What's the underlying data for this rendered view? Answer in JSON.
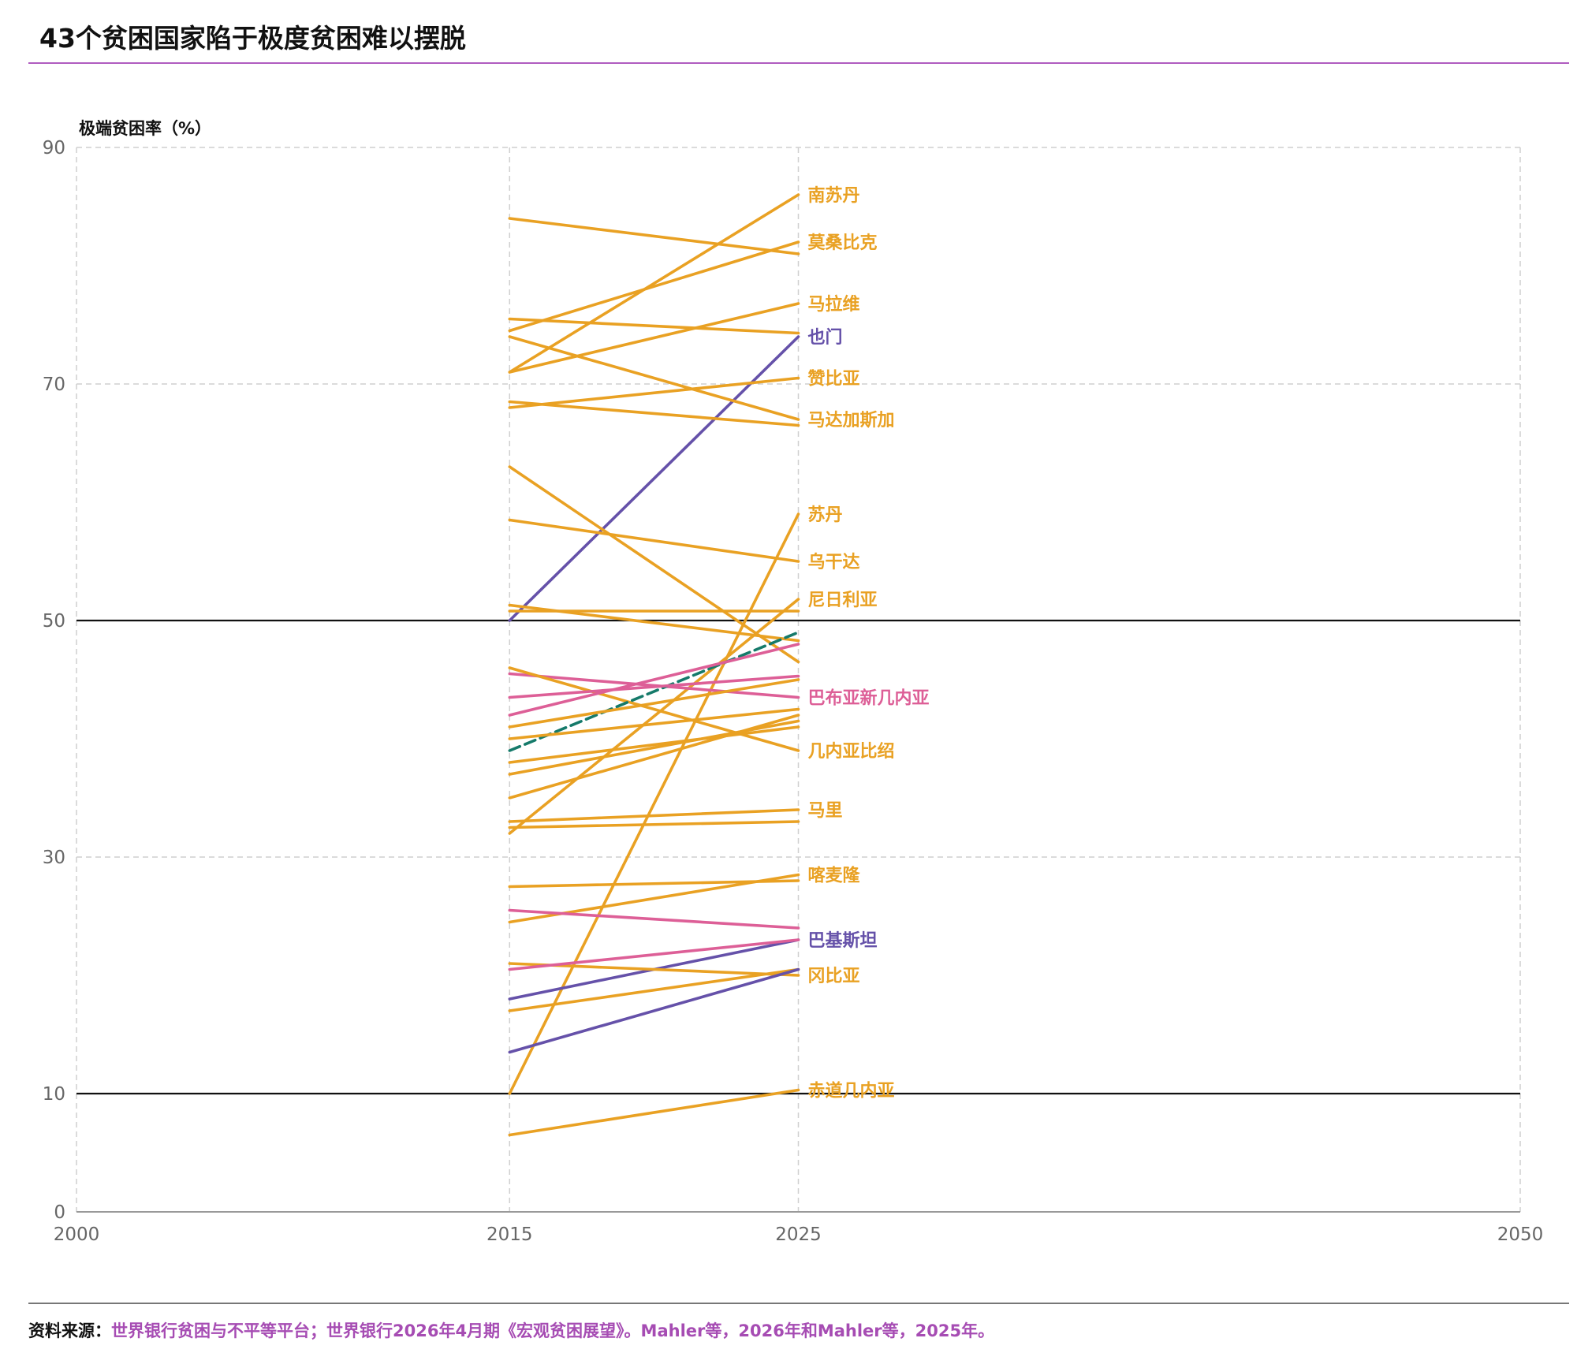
{
  "title": "43个贫困国家陷于极度贫困难以摆脱",
  "source_label": "资料来源：",
  "source_text": "世界银行贫困与不平等平台；世界银行2026年4月期《宏观贫困展望》。Mahler等，2026年和Mahler等，2025年。",
  "colors": {
    "orange": "#e9a123",
    "purple": "#6551a9",
    "pink": "#dd5f97",
    "teal": "#157a6a",
    "grid": "#cfcfcf",
    "axis": "#999999",
    "threshold": "#111111"
  },
  "chart_data": {
    "type": "line",
    "ylabel": "极端贫困率（%）",
    "xlim": [
      2000,
      2050
    ],
    "ylim": [
      0,
      90
    ],
    "x_ticks": [
      2000,
      2015,
      2025,
      2050
    ],
    "y_ticks": [
      0,
      10,
      30,
      50,
      70,
      90
    ],
    "grid": true,
    "threshold_lines": [
      10,
      50
    ],
    "series": [
      {
        "name": "南苏丹",
        "color": "orange",
        "x": [
          2015,
          2025
        ],
        "y": [
          71.0,
          86.0
        ]
      },
      {
        "name": "莫桑比克",
        "color": "orange",
        "x": [
          2015,
          2025
        ],
        "y": [
          74.5,
          82.0
        ]
      },
      {
        "name": "马拉维",
        "color": "orange",
        "x": [
          2015,
          2025
        ],
        "y": [
          71.0,
          76.8
        ]
      },
      {
        "name": "也门",
        "color": "purple",
        "x": [
          2015,
          2025
        ],
        "y": [
          50.0,
          74.0
        ]
      },
      {
        "name": "赞比亚",
        "color": "orange",
        "x": [
          2015,
          2025
        ],
        "y": [
          68.0,
          70.5
        ]
      },
      {
        "name": "马达加斯加",
        "color": "orange",
        "x": [
          2015,
          2025
        ],
        "y": [
          74.0,
          67.0
        ]
      },
      {
        "name": "苏丹",
        "color": "orange",
        "x": [
          2015,
          2025
        ],
        "y": [
          10.0,
          59.0
        ]
      },
      {
        "name": "乌干达",
        "color": "orange",
        "x": [
          2015,
          2025
        ],
        "y": [
          58.5,
          55.0
        ]
      },
      {
        "name": "尼日利亚",
        "color": "orange",
        "x": [
          2015,
          2025
        ],
        "y": [
          32.0,
          51.8
        ]
      },
      {
        "name": "巴布亚新几内亚",
        "color": "pink",
        "x": [
          2015,
          2025
        ],
        "y": [
          45.5,
          43.5
        ]
      },
      {
        "name": "几内亚比绍",
        "color": "orange",
        "x": [
          2015,
          2025
        ],
        "y": [
          46.0,
          39.0
        ]
      },
      {
        "name": "马里",
        "color": "orange",
        "x": [
          2015,
          2025
        ],
        "y": [
          33.0,
          34.0
        ]
      },
      {
        "name": "喀麦隆",
        "color": "orange",
        "x": [
          2015,
          2025
        ],
        "y": [
          24.5,
          28.5
        ]
      },
      {
        "name": "巴基斯坦",
        "color": "purple",
        "x": [
          2015,
          2025
        ],
        "y": [
          18.0,
          23.0
        ]
      },
      {
        "name": "冈比亚",
        "color": "orange",
        "x": [
          2015,
          2025
        ],
        "y": [
          21.0,
          20.0
        ]
      },
      {
        "name": "赤道几内亚",
        "color": "orange",
        "x": [
          2015,
          2025
        ],
        "y": [
          6.5,
          10.3
        ]
      },
      {
        "color": "orange",
        "x": [
          2015,
          2025
        ],
        "y": [
          84.0,
          81.0
        ]
      },
      {
        "color": "orange",
        "x": [
          2015,
          2025
        ],
        "y": [
          75.5,
          74.3
        ]
      },
      {
        "color": "orange",
        "x": [
          2015,
          2025
        ],
        "y": [
          68.5,
          66.5
        ]
      },
      {
        "color": "orange",
        "x": [
          2015,
          2025
        ],
        "y": [
          63.0,
          46.5
        ]
      },
      {
        "color": "orange",
        "x": [
          2015,
          2025
        ],
        "y": [
          51.3,
          48.3
        ]
      },
      {
        "color": "orange",
        "x": [
          2015,
          2025
        ],
        "y": [
          50.8,
          50.8
        ]
      },
      {
        "color": "teal",
        "dashed": true,
        "x": [
          2015,
          2025
        ],
        "y": [
          39.0,
          49.0
        ]
      },
      {
        "color": "pink",
        "x": [
          2015,
          2025
        ],
        "y": [
          43.5,
          45.3
        ]
      },
      {
        "color": "pink",
        "x": [
          2015,
          2025
        ],
        "y": [
          42.0,
          48.0
        ]
      },
      {
        "color": "orange",
        "x": [
          2015,
          2025
        ],
        "y": [
          41.0,
          45.0
        ]
      },
      {
        "color": "orange",
        "x": [
          2015,
          2025
        ],
        "y": [
          40.0,
          42.5
        ]
      },
      {
        "color": "orange",
        "x": [
          2015,
          2025
        ],
        "y": [
          38.0,
          41.0
        ]
      },
      {
        "color": "orange",
        "x": [
          2015,
          2025
        ],
        "y": [
          37.0,
          41.5
        ]
      },
      {
        "color": "orange",
        "x": [
          2015,
          2025
        ],
        "y": [
          35.0,
          42.0
        ]
      },
      {
        "color": "orange",
        "x": [
          2015,
          2025
        ],
        "y": [
          32.5,
          33.0
        ]
      },
      {
        "color": "orange",
        "x": [
          2015,
          2025
        ],
        "y": [
          27.5,
          28.0
        ]
      },
      {
        "color": "pink",
        "x": [
          2015,
          2025
        ],
        "y": [
          25.5,
          24.0
        ]
      },
      {
        "color": "pink",
        "x": [
          2015,
          2025
        ],
        "y": [
          20.5,
          23.0
        ]
      },
      {
        "color": "orange",
        "x": [
          2015,
          2025
        ],
        "y": [
          17.0,
          20.5
        ]
      },
      {
        "color": "purple",
        "x": [
          2015,
          2025
        ],
        "y": [
          13.5,
          20.5
        ]
      }
    ]
  }
}
